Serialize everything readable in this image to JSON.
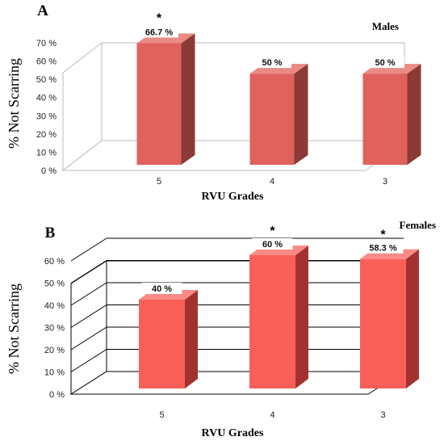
{
  "chart_data": [
    {
      "type": "bar",
      "panel_label": "A",
      "legend": "Males",
      "categories": [
        "5",
        "4",
        "3"
      ],
      "values": [
        66.7,
        50,
        50
      ],
      "data_labels": [
        "66.7 %",
        "50 %",
        "50 %"
      ],
      "significance": [
        "*",
        "",
        ""
      ],
      "xlabel": "RVU Grades",
      "ylabel": "% Not Scarring",
      "ylim": [
        0,
        70
      ],
      "yticks": [
        "0 %",
        "10 %",
        "20 %",
        "30 %",
        "40 %",
        "50 %",
        "60 %",
        "70 %"
      ],
      "grid": false,
      "colors": {
        "bar_front": "#e0625c",
        "bar_side": "#8b3a36",
        "bar_top": "#ea8a84"
      }
    },
    {
      "type": "bar",
      "panel_label": "B",
      "legend": "Females",
      "categories": [
        "5",
        "4",
        "3"
      ],
      "values": [
        40,
        60,
        58.3
      ],
      "data_labels": [
        "40 %",
        "60 %",
        "58.3 %"
      ],
      "significance": [
        "",
        "*",
        "*"
      ],
      "xlabel": "RVU Grades",
      "ylabel": "% Not Scarring",
      "ylim": [
        0,
        60
      ],
      "yticks": [
        "0 %",
        "10 %",
        "20 %",
        "30 %",
        "40 %",
        "50 %",
        "60 %"
      ],
      "grid": true,
      "colors": {
        "bar_front": "#fa5f5a",
        "bar_side": "#a3322f",
        "bar_top": "#fb8a86"
      }
    }
  ]
}
